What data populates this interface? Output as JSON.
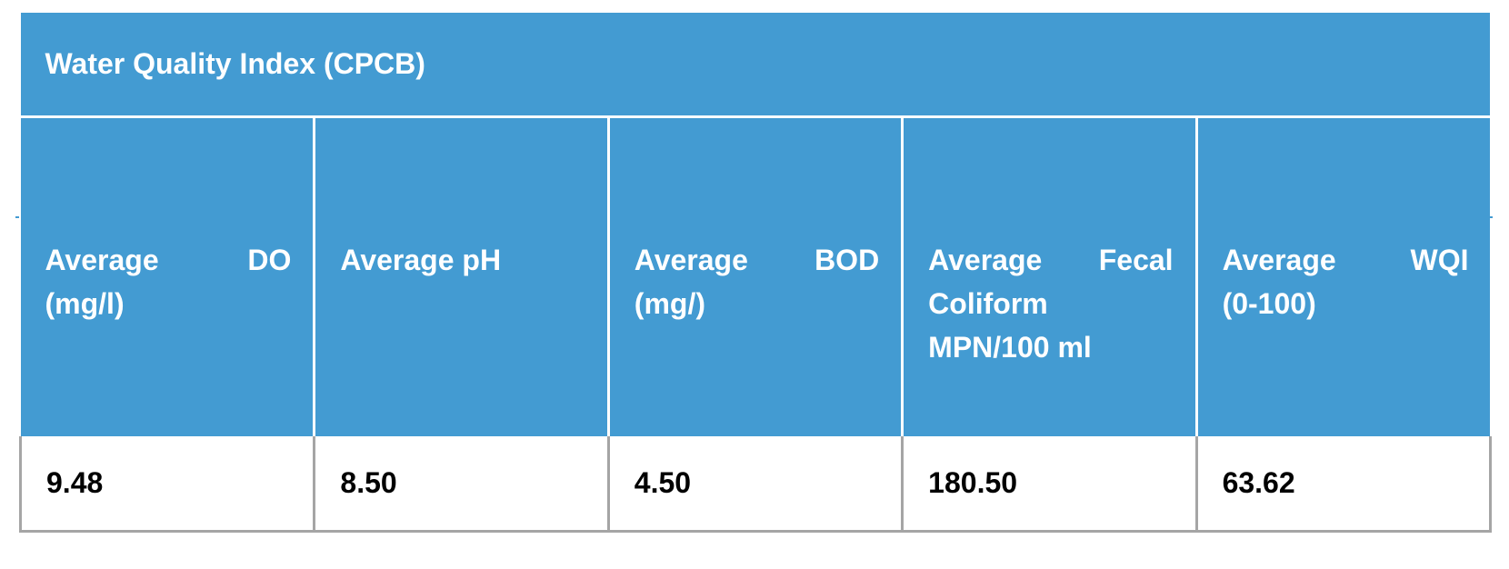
{
  "table": {
    "title": "Water Quality Index (CPCB)",
    "headers": [
      {
        "line1_left": "Average",
        "line1_right": "DO",
        "rest": [
          "(mg/l)"
        ]
      },
      {
        "line1_left": "Average pH",
        "line1_right": "",
        "rest": []
      },
      {
        "line1_left": "Average",
        "line1_right": "BOD",
        "rest": [
          "(mg/)"
        ]
      },
      {
        "line1_left": "Average",
        "line1_right": "Fecal",
        "rest": [
          "Coliform",
          "MPN/100 ml"
        ]
      },
      {
        "line1_left": "Average",
        "line1_right": "WQI",
        "rest": [
          "(0-100)"
        ]
      }
    ],
    "rows": [
      [
        "9.48",
        "8.50",
        "4.50",
        "180.50",
        "63.62"
      ]
    ]
  },
  "colors": {
    "header_bg": "#439bd2",
    "header_text": "#ffffff",
    "border_gray": "#a5a5a5"
  }
}
